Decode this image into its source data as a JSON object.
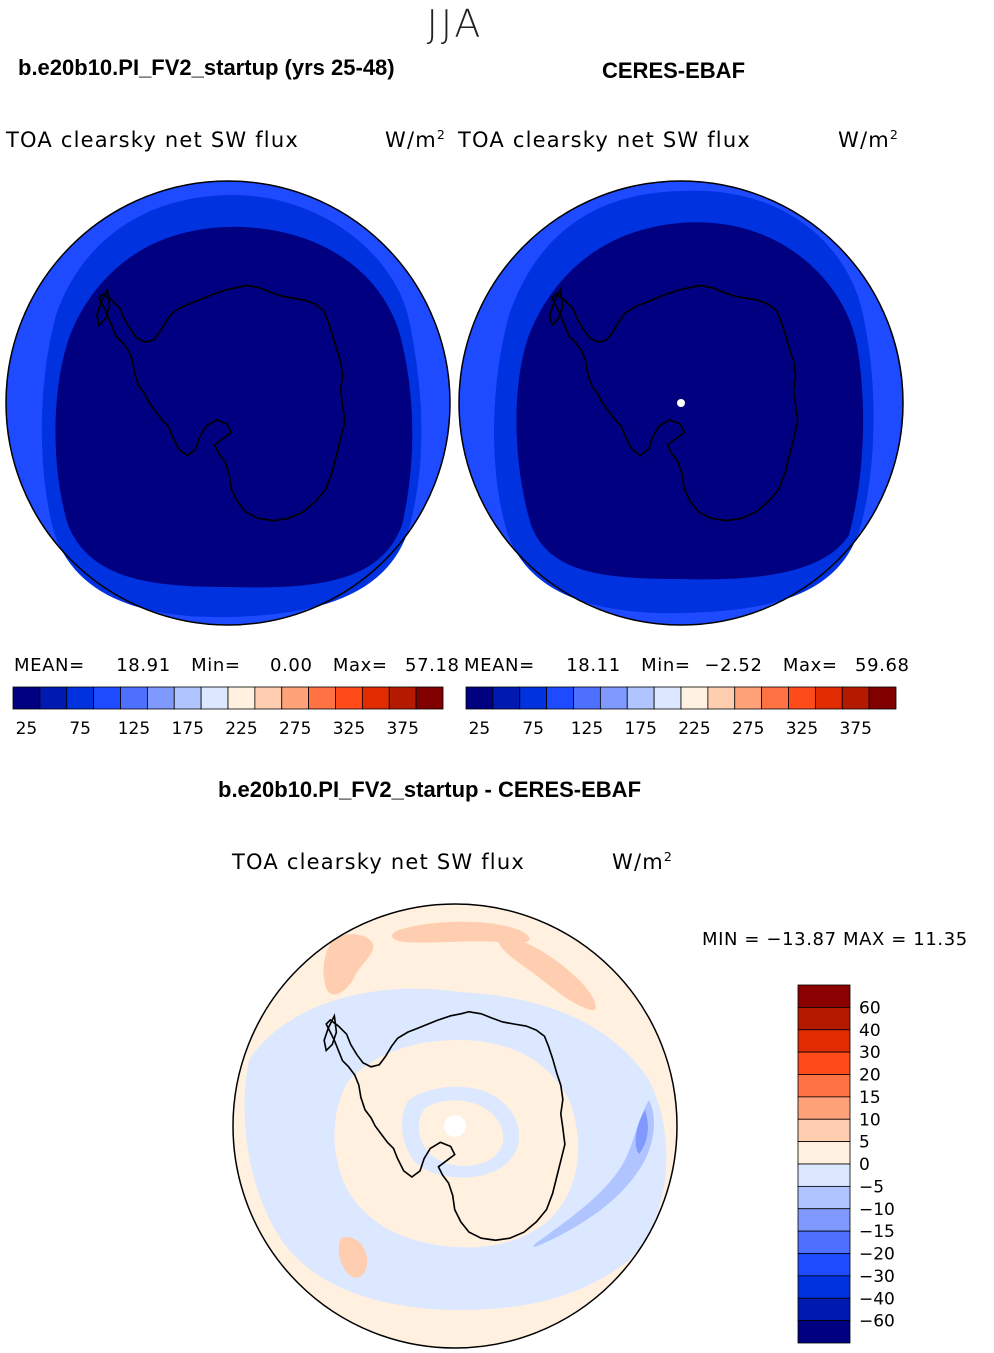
{
  "season": "JJA",
  "panels": [
    {
      "title": "b.e20b10.PI_FV2_startup (yrs 25-48)",
      "variable": "TOA clearsky net SW flux",
      "units_base": "W/m",
      "units_exp": "2",
      "mean_label": "MEAN=",
      "mean": "18.91",
      "min_label": "Min=",
      "min": "0.00",
      "max_label": "Max=",
      "max": "57.18"
    },
    {
      "title": "CERES-EBAF",
      "variable": "TOA clearsky net SW flux",
      "units_base": "W/m",
      "units_exp": "2",
      "mean_label": "MEAN=",
      "mean": "18.11",
      "min_label": "Min=",
      "min": "−2.52",
      "max_label": "Max=",
      "max": "59.68"
    }
  ],
  "colorbar_abs": {
    "colors": [
      "#000080",
      "#0019b0",
      "#0032e0",
      "#1e4bff",
      "#4d70ff",
      "#7f99ff",
      "#b0c4ff",
      "#dbe8ff",
      "#fff0e0",
      "#ffcdb0",
      "#ffa27a",
      "#ff7244",
      "#ff4a1a",
      "#e02c00",
      "#b41a00",
      "#800000"
    ],
    "tick_labels": [
      "25",
      "75",
      "125",
      "175",
      "225",
      "275",
      "325",
      "375"
    ]
  },
  "difference": {
    "title": "b.e20b10.PI_FV2_startup - CERES-EBAF",
    "variable": "TOA clearsky net SW flux",
    "units_base": "W/m",
    "units_exp": "2",
    "minmax": "MIN = −13.87 MAX =   11.35",
    "colorbar": {
      "colors_top_to_bottom": [
        "#8b0000",
        "#b41a00",
        "#e02c00",
        "#ff4a1a",
        "#ff7244",
        "#ffa27a",
        "#ffcdb0",
        "#fff0e0",
        "#dbe8ff",
        "#b0c4ff",
        "#7f99ff",
        "#4d70ff",
        "#1e4bff",
        "#0032e0",
        "#0019b0",
        "#000080"
      ],
      "tick_labels": [
        "60",
        "40",
        "30",
        "20",
        "15",
        "10",
        "5",
        "0",
        "−5",
        "−10",
        "−15",
        "−20",
        "−30",
        "−40",
        "−60"
      ]
    }
  },
  "map_colors": {
    "outer_ring": "#1e4bff",
    "middle_ring": "#0032e0",
    "interior": "#000080",
    "diff_positive": "#fff0e0",
    "diff_positive_strong": "#ffcdb0",
    "diff_negative": "#dbe8ff",
    "diff_negative_strong": "#b0c4ff",
    "diff_negative_stronger": "#7f99ff"
  }
}
